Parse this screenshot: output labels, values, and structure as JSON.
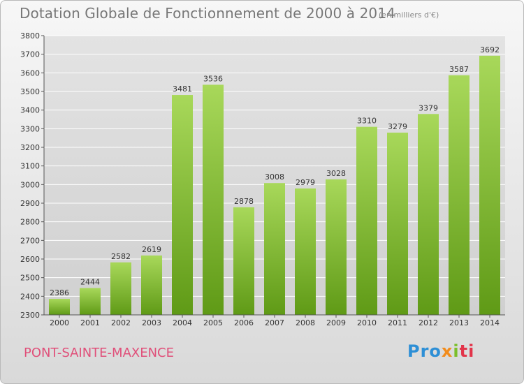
{
  "header": {
    "title": "Dotation Globale de Fonctionnement de 2000 à 2014",
    "subtitle": "(en milliers d'€)"
  },
  "footer": {
    "city": "PONT-SAINTE-MAXENCE",
    "brand": [
      "Pro",
      "x",
      "i",
      "ti"
    ]
  },
  "colors": {
    "bar_light": "#a8d85a",
    "bar_dark": "#5f9a16",
    "grid": "#ffffff",
    "city": "#e0507a"
  },
  "chart_data": {
    "type": "bar",
    "title": "Dotation Globale de Fonctionnement de 2000 à 2014",
    "subtitle": "(en milliers d'€)",
    "xlabel": "",
    "ylabel": "",
    "categories": [
      "2000",
      "2001",
      "2002",
      "2003",
      "2004",
      "2005",
      "2006",
      "2007",
      "2008",
      "2009",
      "2010",
      "2011",
      "2012",
      "2013",
      "2014"
    ],
    "values": [
      2386,
      2444,
      2582,
      2619,
      3481,
      3536,
      2878,
      3008,
      2979,
      3028,
      3310,
      3279,
      3379,
      3587,
      3692
    ],
    "ylim": [
      2300,
      3800
    ],
    "yticks": [
      2300,
      2400,
      2500,
      2600,
      2700,
      2800,
      2900,
      3000,
      3100,
      3200,
      3300,
      3400,
      3500,
      3600,
      3700,
      3800
    ],
    "grid": true,
    "legend": "none"
  }
}
